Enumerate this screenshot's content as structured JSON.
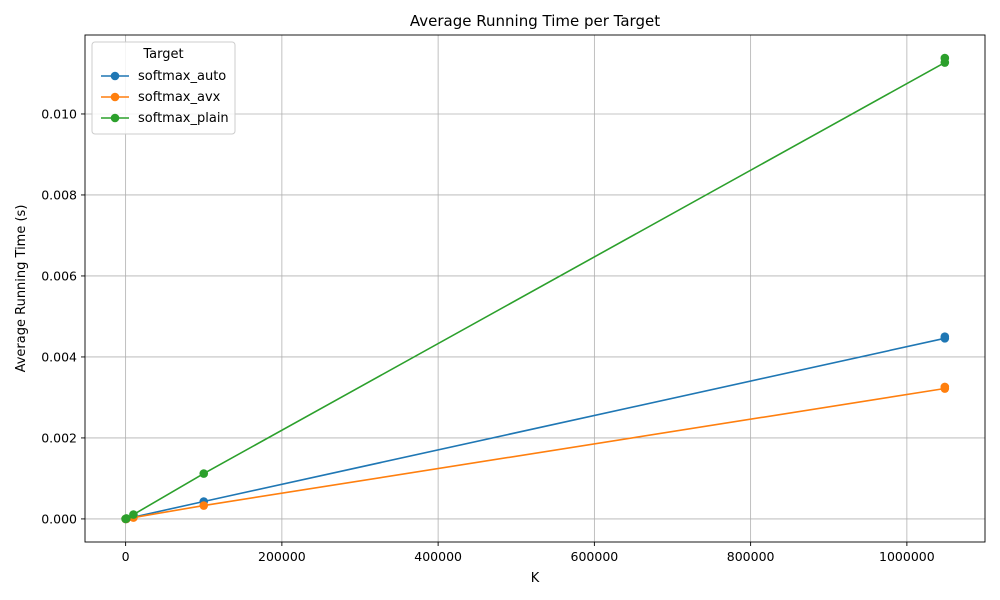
{
  "chart_data": {
    "type": "line",
    "title": "Average Running Time per Target",
    "xlabel": "K",
    "ylabel": "Average Running Time (s)",
    "xlim": [
      -52000,
      1100000
    ],
    "ylim": [
      -0.00057,
      0.01195
    ],
    "xticks": [
      0,
      200000,
      400000,
      600000,
      800000,
      1000000
    ],
    "xtick_labels": [
      "0",
      "200000",
      "400000",
      "600000",
      "800000",
      "1000000"
    ],
    "yticks": [
      0.0,
      0.002,
      0.004,
      0.006,
      0.008,
      0.01
    ],
    "ytick_labels": [
      "0.000",
      "0.002",
      "0.004",
      "0.006",
      "0.008",
      "0.010"
    ],
    "grid": true,
    "legend": {
      "title": "Target",
      "position": "top-left"
    },
    "series": [
      {
        "name": "softmax_auto",
        "color": "#1f77b4",
        "line": {
          "x": [
            0,
            1000,
            10000,
            100000,
            1048576
          ],
          "y": [
            2e-07,
            1.5e-06,
            4.5e-05,
            0.00043,
            0.00446
          ]
        },
        "points": [
          {
            "x": 0,
            "y": 2e-07
          },
          {
            "x": 1000,
            "y": 1.5e-06
          },
          {
            "x": 10000,
            "y": 4.5e-05
          },
          {
            "x": 100000,
            "y": 0.00043
          },
          {
            "x": 1048576,
            "y": 0.00446
          },
          {
            "x": 1048576,
            "y": 0.0045
          }
        ]
      },
      {
        "name": "softmax_avx",
        "color": "#ff7f0e",
        "line": {
          "x": [
            0,
            1000,
            10000,
            100000,
            1048576
          ],
          "y": [
            2e-07,
            1.2e-06,
            3.3e-05,
            0.00033,
            0.00322
          ]
        },
        "points": [
          {
            "x": 0,
            "y": 2e-07
          },
          {
            "x": 1000,
            "y": 1.2e-06
          },
          {
            "x": 10000,
            "y": 3.3e-05
          },
          {
            "x": 100000,
            "y": 0.00033
          },
          {
            "x": 1048576,
            "y": 0.00322
          },
          {
            "x": 1048576,
            "y": 0.00326
          }
        ]
      },
      {
        "name": "softmax_plain",
        "color": "#2ca02c",
        "line": {
          "x": [
            0,
            1000,
            10000,
            100000,
            1048576
          ],
          "y": [
            1e-06,
            1.15e-05,
            0.000108,
            0.00112,
            0.01127
          ]
        },
        "points": [
          {
            "x": 0,
            "y": 1e-06
          },
          {
            "x": 1000,
            "y": 1.15e-05
          },
          {
            "x": 10000,
            "y": 0.000108
          },
          {
            "x": 100000,
            "y": 0.00112
          },
          {
            "x": 1048576,
            "y": 0.01127
          },
          {
            "x": 1048576,
            "y": 0.01138
          }
        ]
      }
    ]
  }
}
